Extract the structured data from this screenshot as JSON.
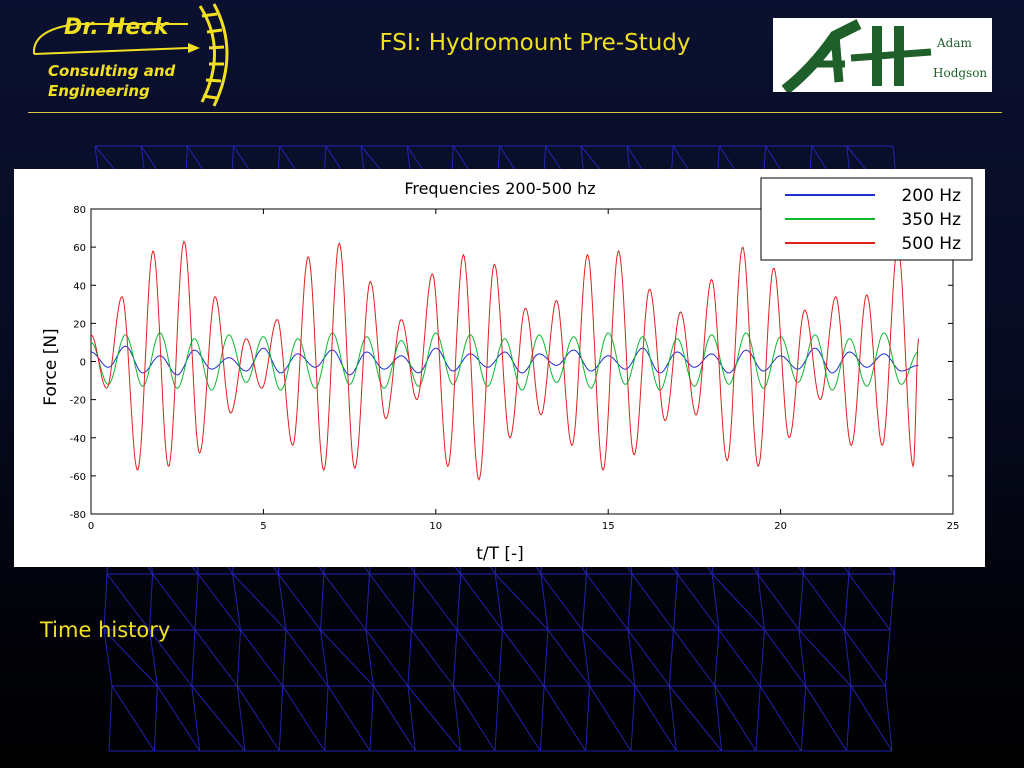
{
  "header": {
    "logo_name": "Dr. Heck",
    "logo_tagline_line1": "Consulting and",
    "logo_tagline_line2": "Engineering",
    "title": "FSI: Hydromount Pre-Study",
    "partner_logo_word1": "Adam",
    "partner_logo_word2": "Hodgson"
  },
  "caption": "Time history",
  "colors": {
    "accent": "#f0e020",
    "partner_green": "#1f5f2a",
    "mesh": "#2a2ad8"
  },
  "chart_data": {
    "type": "line",
    "title": "Frequencies 200-500 hz",
    "xlabel": "t/T [-]",
    "ylabel": "Force [N]",
    "xlim": [
      0,
      25
    ],
    "ylim": [
      -80,
      80
    ],
    "xticks": [
      0,
      5,
      10,
      15,
      20,
      25
    ],
    "yticks": [
      -80,
      -60,
      -40,
      -20,
      0,
      20,
      40,
      60,
      80
    ],
    "grid": false,
    "legend_position": "top-right",
    "series": [
      {
        "name": "200 Hz",
        "color": "#1f2fd0",
        "x": [
          0,
          0.5,
          1,
          1.5,
          2,
          2.5,
          3,
          3.5,
          4,
          4.5,
          5,
          5.5,
          6,
          6.5,
          7,
          7.5,
          8,
          8.5,
          9,
          9.5,
          10,
          10.5,
          11,
          11.5,
          12,
          12.5,
          13,
          13.5,
          14,
          14.5,
          15,
          15.5,
          16,
          16.5,
          17,
          17.5,
          18,
          18.5,
          19,
          19.5,
          20,
          20.5,
          21,
          21.5,
          22,
          22.5,
          23,
          23.5,
          24
        ],
        "y": [
          5,
          -3,
          8,
          -6,
          3,
          -7,
          6,
          -4,
          2,
          -5,
          7,
          -6,
          4,
          -3,
          6,
          -7,
          5,
          -4,
          3,
          -6,
          7,
          -5,
          4,
          -3,
          5,
          -6,
          4,
          -2,
          6,
          -5,
          3,
          -4,
          7,
          -6,
          5,
          -3,
          4,
          -6,
          6,
          -5,
          3,
          -4,
          7,
          -6,
          5,
          -3,
          4,
          -5,
          -2
        ]
      },
      {
        "name": "350 Hz",
        "color": "#10b830",
        "x": [
          0,
          0.5,
          1,
          1.5,
          2,
          2.5,
          3,
          3.5,
          4,
          4.5,
          5,
          5.5,
          6,
          6.5,
          7,
          7.5,
          8,
          8.5,
          9,
          9.5,
          10,
          10.5,
          11,
          11.5,
          12,
          12.5,
          13,
          13.5,
          14,
          14.5,
          15,
          15.5,
          16,
          16.5,
          17,
          17.5,
          18,
          18.5,
          19,
          19.5,
          20,
          20.5,
          21,
          21.5,
          22,
          22.5,
          23,
          23.5,
          24
        ],
        "y": [
          10,
          -12,
          14,
          -13,
          15,
          -14,
          12,
          -15,
          14,
          -11,
          13,
          -15,
          12,
          -14,
          15,
          -12,
          13,
          -14,
          11,
          -13,
          15,
          -12,
          14,
          -13,
          12,
          -15,
          14,
          -11,
          13,
          -14,
          15,
          -12,
          13,
          -15,
          12,
          -13,
          14,
          -12,
          15,
          -14,
          13,
          -11,
          14,
          -15,
          12,
          -13,
          15,
          -12,
          5
        ]
      },
      {
        "name": "500 Hz",
        "color": "#e02020",
        "x": [
          0,
          0.45,
          0.9,
          1.35,
          1.8,
          2.25,
          2.7,
          3.15,
          3.6,
          4.05,
          4.5,
          4.95,
          5.4,
          5.85,
          6.3,
          6.75,
          7.2,
          7.65,
          8.1,
          8.55,
          9,
          9.45,
          9.9,
          10.35,
          10.8,
          11.25,
          11.7,
          12.15,
          12.6,
          13.05,
          13.5,
          13.95,
          14.4,
          14.85,
          15.3,
          15.75,
          16.2,
          16.65,
          17.1,
          17.55,
          18,
          18.45,
          18.9,
          19.35,
          19.8,
          20.25,
          20.7,
          21.15,
          21.6,
          22.05,
          22.5,
          22.95,
          23.4,
          23.85,
          24
        ],
        "y": [
          14,
          -14,
          34,
          -57,
          58,
          -55,
          63,
          -48,
          34,
          -27,
          12,
          -14,
          22,
          -44,
          55,
          -57,
          62,
          -56,
          42,
          -30,
          22,
          -20,
          46,
          -55,
          56,
          -62,
          51,
          -40,
          28,
          -28,
          32,
          -44,
          56,
          -57,
          58,
          -49,
          38,
          -31,
          26,
          -28,
          43,
          -52,
          60,
          -55,
          49,
          -40,
          27,
          -20,
          34,
          -44,
          35,
          -44,
          60,
          -55,
          12
        ]
      }
    ]
  }
}
